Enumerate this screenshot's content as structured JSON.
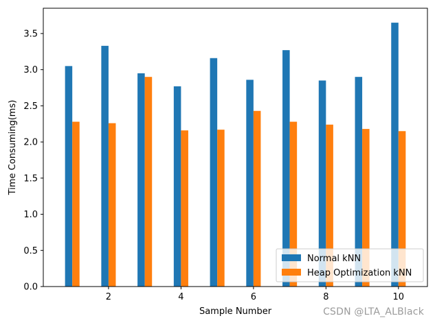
{
  "chart_data": {
    "type": "bar",
    "xlabel": "Sample Number",
    "ylabel": "Time Consuming(ms)",
    "x": [
      1,
      2,
      3,
      4,
      5,
      6,
      7,
      8,
      9,
      10
    ],
    "xlim": [
      0.2,
      10.8
    ],
    "ylim": [
      0,
      3.85
    ],
    "xticks": [
      "2",
      "4",
      "6",
      "8",
      "10"
    ],
    "yticks": [
      "0.0",
      "0.5",
      "1.0",
      "1.5",
      "2.0",
      "2.5",
      "3.0",
      "3.5"
    ],
    "series": [
      {
        "name": "Normal kNN",
        "color": "#1f77b4",
        "values": [
          3.05,
          3.33,
          2.95,
          2.77,
          3.16,
          2.86,
          3.27,
          2.85,
          2.9,
          3.65
        ]
      },
      {
        "name": "Heap Optimization kNN",
        "color": "#ff7f0e",
        "values": [
          2.28,
          2.26,
          2.9,
          2.16,
          2.17,
          2.43,
          2.28,
          2.24,
          2.18,
          2.15
        ]
      }
    ],
    "grid": false,
    "legend_position": "lower-right"
  },
  "watermark": "CSDN @LTA_ALBlack"
}
